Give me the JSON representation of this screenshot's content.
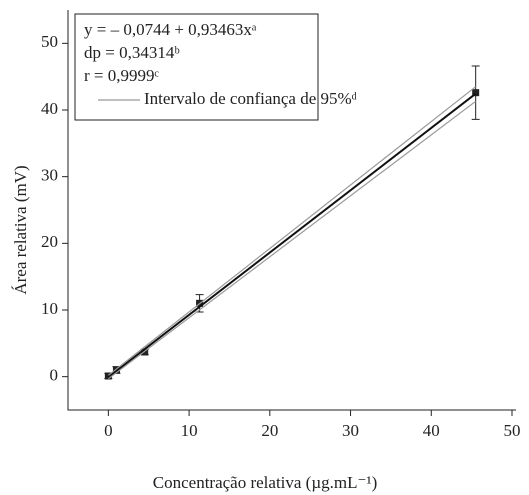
{
  "chart_data": {
    "type": "scatter",
    "xlabel": "Concentração relativa (µg.mL⁻¹)",
    "ylabel": "Área relativa (mV)",
    "annotations": [
      "y = – 0,0744 + 0,93463xᵃ",
      "dp = 0,34314ᵇ",
      "r = 0,9999ᶜ"
    ],
    "xlim": [
      -5,
      50
    ],
    "xticks": [
      0,
      10,
      20,
      30,
      40,
      50
    ],
    "ylim": [
      -5,
      55
    ],
    "yticks": [
      0,
      10,
      20,
      30,
      40,
      50
    ],
    "series": [
      {
        "kind": "points",
        "color": "#222222",
        "x": [
          0,
          1,
          4.5,
          11.3,
          45.5
        ],
        "values": [
          0.1,
          1.0,
          3.7,
          11.0,
          42.6
        ],
        "errors": [
          0.4,
          0.5,
          0.4,
          1.3,
          4.0
        ]
      },
      {
        "kind": "line",
        "color": "#111111",
        "x": [
          0,
          45.5
        ],
        "values": [
          -0.0744,
          42.45
        ]
      },
      {
        "kind": "line",
        "name": "Intervalo de confiança de 95%ᵈ",
        "color": "#999999",
        "x": [
          0,
          45.5
        ],
        "values": [
          0.2,
          43.5
        ]
      },
      {
        "kind": "line",
        "color": "#999999",
        "x": [
          0,
          45.5
        ],
        "values": [
          -0.3,
          41.3
        ]
      }
    ]
  }
}
